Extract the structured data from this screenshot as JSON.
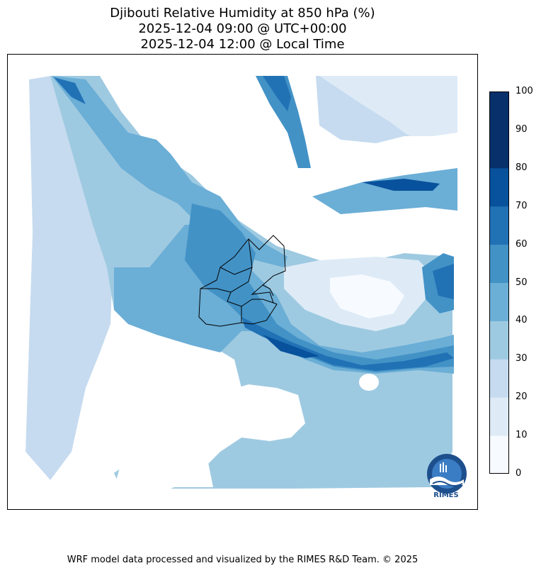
{
  "title": {
    "line1": "Djibouti Relative Humidity at 850 hPa (%)",
    "line2": "2025-12-04 09:00 @ UTC+00:00",
    "line3": "2025-12-04 12:00 @ Local Time"
  },
  "colorbar": {
    "ticks": [
      "0",
      "10",
      "20",
      "30",
      "40",
      "50",
      "60",
      "70",
      "80",
      "90",
      "100"
    ],
    "colors": [
      "#f7fbff",
      "#deebf7",
      "#c6dbef",
      "#9ecae1",
      "#6baed6",
      "#4292c6",
      "#2171b5",
      "#08519c",
      "#08306b",
      "#08306b"
    ]
  },
  "logo": {
    "text": "RIMES"
  },
  "footer": "WRF model data processed and visualized by the RIMES R&D Team. © 2025"
}
